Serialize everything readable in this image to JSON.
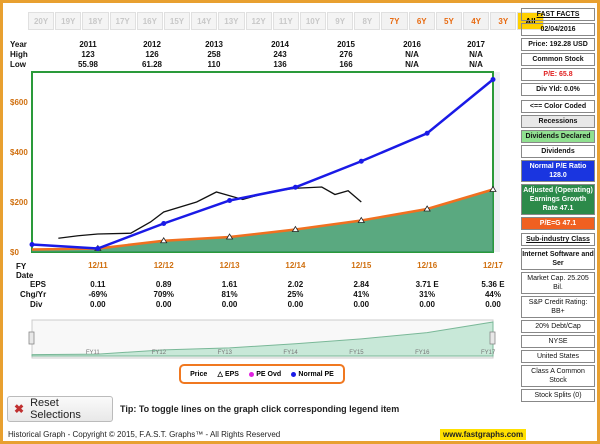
{
  "periods": [
    "20Y",
    "19Y",
    "18Y",
    "17Y",
    "16Y",
    "15Y",
    "14Y",
    "13Y",
    "12Y",
    "11Y",
    "10Y",
    "9Y",
    "8Y",
    "7Y",
    "6Y",
    "5Y",
    "4Y",
    "3Y",
    "All"
  ],
  "top_table": {
    "year_label": "Year",
    "high_label": "High",
    "low_label": "Low",
    "years": [
      "2011",
      "2012",
      "2013",
      "2014",
      "2015",
      "2016",
      "2017"
    ],
    "highs": [
      "123",
      "126",
      "258",
      "243",
      "276",
      "N/A",
      "N/A"
    ],
    "lows": [
      "55.98",
      "61.28",
      "110",
      "136",
      "166",
      "N/A",
      "N/A"
    ]
  },
  "chart_data": {
    "type": "line",
    "y_ticks": [
      "$600",
      "$400",
      "$200",
      "$0"
    ],
    "y_tick_values": [
      600,
      400,
      200,
      0
    ],
    "ylim": [
      0,
      720
    ],
    "x_labels": [
      "12/11",
      "12/12",
      "12/13",
      "12/14",
      "12/15",
      "12/16",
      "12/17"
    ],
    "series": [
      {
        "name": "Normal PE",
        "color": "#1a1ae6",
        "x": [
          "12/10",
          "12/11",
          "12/12",
          "12/13",
          "12/14",
          "12/15",
          "12/16",
          "12/17"
        ],
        "values": [
          30,
          14,
          114,
          206,
          259,
          363,
          475,
          690
        ]
      },
      {
        "name": "EPS",
        "color": "#f07020",
        "x": [
          "12/10",
          "12/11",
          "12/12",
          "12/13",
          "12/14",
          "12/15",
          "12/16",
          "12/17"
        ],
        "values": [
          10,
          14,
          45,
          60,
          90,
          126,
          172,
          250
        ]
      },
      {
        "name": "Price",
        "color": "#000000",
        "points": [
          [
            0.4,
            55
          ],
          [
            0.7,
            65
          ],
          [
            1.0,
            72
          ],
          [
            1.5,
            75
          ],
          [
            1.8,
            120
          ],
          [
            2.0,
            160
          ],
          [
            2.5,
            200
          ],
          [
            2.8,
            240
          ],
          [
            3.2,
            210
          ],
          [
            3.6,
            240
          ],
          [
            4.0,
            255
          ],
          [
            4.4,
            260
          ],
          [
            4.6,
            230
          ],
          [
            4.8,
            245
          ],
          [
            5.0,
            200
          ]
        ]
      }
    ]
  },
  "bottom_table": {
    "fy_label": "FY Date",
    "fy_dates": [
      "12/11",
      "12/12",
      "12/13",
      "12/14",
      "12/15",
      "12/16",
      "12/17"
    ],
    "eps_label": "EPS",
    "chg_label": "Chg/Yr",
    "div_label": "Div",
    "eps": [
      "0.11",
      "0.89",
      "1.61",
      "2.02",
      "2.84",
      "3.71 E",
      "5.36 E"
    ],
    "chg": [
      "-69%",
      "709%",
      "81%",
      "25%",
      "41%",
      "31%",
      "44%"
    ],
    "div": [
      "0.00",
      "0.00",
      "0.00",
      "0.00",
      "0.00",
      "0.00",
      "0.00"
    ]
  },
  "navigator_labels": [
    "FY11",
    "FY12",
    "FY13",
    "FY14",
    "FY15",
    "FY16",
    "FY17"
  ],
  "legend": {
    "price": "Price",
    "eps": "EPS",
    "pe_ovd": "PE Ovd",
    "normal_pe": "Normal PE"
  },
  "reset_label": "Reset Selections",
  "tip": "Tip: To toggle lines on the graph click corresponding legend item",
  "footer": "Historical Graph - Copyright © 2015, F.A.S.T. Graphs™ - All Rights Reserved",
  "site": "www.fastgraphs.com",
  "sidebar": {
    "title": "FAST FACTS",
    "date": "02/04/2016",
    "price": "Price: 192.28 USD",
    "stock_type": "Common Stock",
    "pe": "P/E: 65.8",
    "div_yld": "Div Yld: 0.0%",
    "color_coded": "<== Color Coded",
    "recessions": "Recessions",
    "dividends_declared": "Dividends Declared",
    "dividends": "Dividends",
    "normal_pe": "Normal P/E Ratio 128.0",
    "adjusted": "Adjusted (Operating) Earnings Growth Rate 47.1",
    "peg": "P/E=G 47.1",
    "subindustry_label": "Sub-industry Class",
    "subindustry": "Internet Software and Ser",
    "market_cap": "Market Cap. 25.205 Bil.",
    "credit": "S&P Credit Rating: BB+",
    "debt": "20% Debt/Cap",
    "exchange": "NYSE",
    "country": "United States",
    "share_class": "Class A Common Stock",
    "splits": "Stock Splits (0)"
  }
}
